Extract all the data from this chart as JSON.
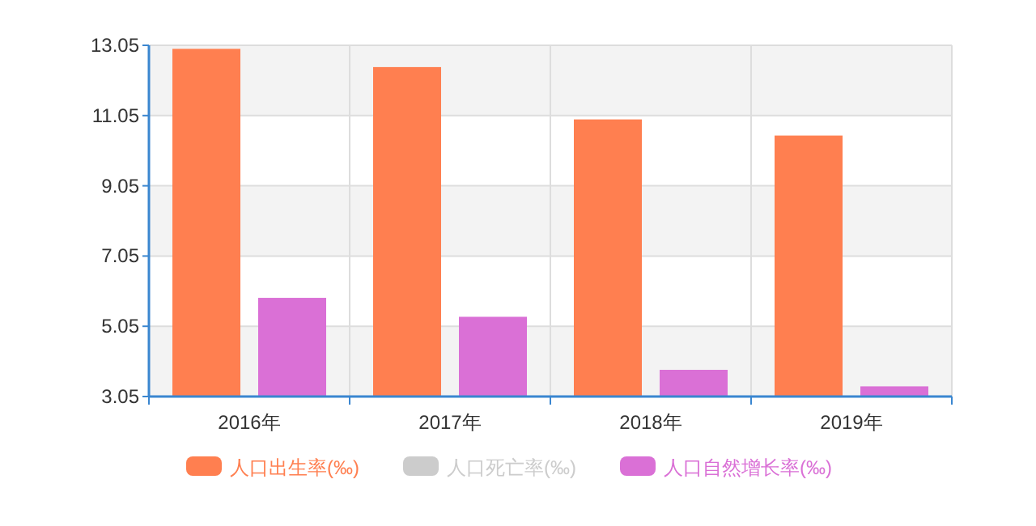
{
  "chart_data": {
    "type": "bar",
    "categories": [
      "2016年",
      "2017年",
      "2018年",
      "2019年"
    ],
    "series": [
      {
        "name": "人口出生率(‰)",
        "color": "#ff7f50",
        "values": [
          12.95,
          12.43,
          10.94,
          10.48
        ]
      },
      {
        "name": "人口死亡率(‰)",
        "color": "#cccccc",
        "values": [
          null,
          null,
          null,
          null
        ]
      },
      {
        "name": "人口自然增长率(‰)",
        "color": "#da70d6",
        "values": [
          5.86,
          5.32,
          3.81,
          3.34
        ]
      }
    ],
    "ylim": [
      3.05,
      13.05
    ],
    "yticks": [
      3.05,
      5.05,
      7.05,
      9.05,
      11.05,
      13.05
    ],
    "grid": true,
    "legend": "bottom"
  }
}
